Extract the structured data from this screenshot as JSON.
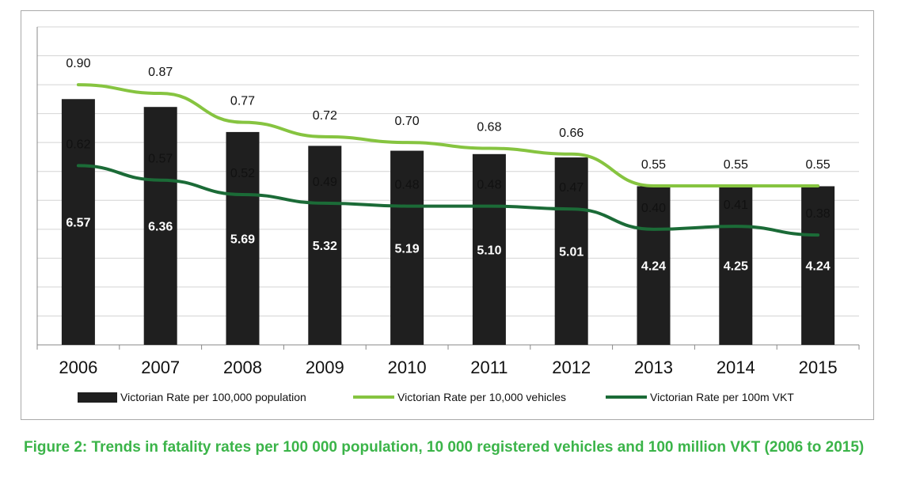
{
  "chart_data": {
    "type": "bar",
    "categories": [
      "2006",
      "2007",
      "2008",
      "2009",
      "2010",
      "2011",
      "2012",
      "2013",
      "2014",
      "2015"
    ],
    "series": [
      {
        "name": "Victorian Rate per 100,000 population",
        "kind": "bar",
        "color": "#1f1f1f",
        "label_color": "#ffffff",
        "values": [
          6.57,
          6.36,
          5.69,
          5.32,
          5.19,
          5.1,
          5.01,
          4.24,
          4.25,
          4.24
        ],
        "labels": [
          "6.57",
          "6.36",
          "5.69",
          "5.32",
          "5.19",
          "5.10",
          "5.01",
          "4.24",
          "4.25",
          "4.24"
        ]
      },
      {
        "name": "Victorian Rate per 10,000 vehicles",
        "kind": "line",
        "color": "#86c440",
        "values": [
          0.9,
          0.87,
          0.77,
          0.72,
          0.7,
          0.68,
          0.66,
          0.55,
          0.55,
          0.55
        ],
        "labels": [
          "0.90",
          "0.87",
          "0.77",
          "0.72",
          "0.70",
          "0.68",
          "0.66",
          "0.55",
          "0.55",
          "0.55"
        ]
      },
      {
        "name": "Victorian Rate per 100m VKT",
        "kind": "line",
        "color": "#1b6b37",
        "values": [
          0.62,
          0.57,
          0.52,
          0.49,
          0.48,
          0.48,
          0.47,
          0.4,
          0.41,
          0.38
        ],
        "labels": [
          "0.62",
          "0.57",
          "0.52",
          "0.49",
          "0.48",
          "0.48",
          "0.47",
          "0.40",
          "0.41",
          "0.38"
        ]
      }
    ],
    "grid": true,
    "legend_position": "bottom",
    "title": "",
    "xlabel": "",
    "ylabel": ""
  },
  "caption": "Figure 2: Trends in fatality rates per 100 000 population, 10 000 registered vehicles and 100 million VKT (2006 to 2015)"
}
